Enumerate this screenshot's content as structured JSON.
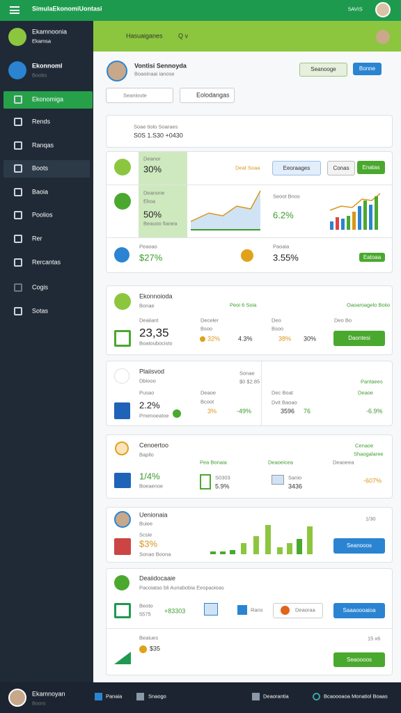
{
  "top_bar": {
    "title": "SimulaEkonomiUontasi",
    "status": "5AVIS"
  },
  "sidebar": {
    "profile": {
      "name": "Ekamnoonia",
      "role": "Ekamsa"
    },
    "account": {
      "name": "Ekonnoml",
      "role": "Boobs"
    },
    "menu": [
      "Ekonomiga",
      "Rends",
      "Ranqas",
      "Boots",
      "Baoia",
      "Poolios",
      "Rer",
      "Rercantas",
      "Cogis",
      "Sotas"
    ]
  },
  "header": {
    "title": "Hasuaiganes",
    "search": "Q v"
  },
  "profile_bar": {
    "name": "Vontisi Sennoyda",
    "subtitle": "Boaoinaai ianose",
    "buttons": [
      "Seanooge",
      "Bonne"
    ],
    "search": [
      "Seanioute",
      "Eolodangas"
    ]
  },
  "notice": {
    "title": "Soae tiolo Soaraes",
    "text": "S0S 1.S30 +0430"
  },
  "overview": {
    "row_1": {
      "label": "Deanor",
      "value": "30%",
      "tag": "Deat Soaa",
      "buttons": [
        "Eeoraages",
        "Conas",
        "Enatas"
      ]
    },
    "row_2": {
      "label": "Deanone",
      "sublabel": "Ekoa",
      "value": "50%",
      "note": "Beauoo fianea",
      "right_label": "Seoot Bnos",
      "right_value": "6.2%"
    },
    "row_3": {
      "label": "Peaoao",
      "value": "$27%",
      "right_label": "Paoaia",
      "right_value": "3.55%",
      "button": "Eatoaa"
    }
  },
  "cards": [
    {
      "title": "Ekonnoioda",
      "subtitle": "Bonae",
      "items": [
        "Peoi 6 Soia",
        "Oaoaroagelo Boiio",
        "Deaiiant",
        "23,35",
        "Boatoubocisto",
        "Deceler",
        "Bsoo",
        "32%",
        "4.3%",
        "Deo",
        "Bsoo",
        "38%",
        "30%",
        "Deo Bo",
        "Daontesi"
      ]
    },
    {
      "title": "Plaiisvod",
      "subtitle": "Dbiooo",
      "items": [
        "Sonae",
        "$0 $2.85",
        "Pantaees",
        "Pusao",
        "2.2%",
        "Pmenoeatoe",
        "Deaoe",
        "Bcoot",
        "3%",
        "-49%",
        "Dec Boat",
        "Dvit Baoao",
        "3596",
        "76",
        "Deaoe",
        "-6.9%"
      ]
    },
    {
      "title": "Cenoertoo",
      "subtitle": "Bapilo",
      "items": [
        "Cenaoe",
        "Shaogalaree",
        "Pea Bonaia",
        "Deaoeicea",
        "Deaoeea",
        "1/4%",
        "Boeaenoe",
        "S0303",
        "5.9%",
        "Sanio",
        "3436",
        "-607%"
      ]
    },
    {
      "title": "Uenionaia",
      "subtitle": "Buiee",
      "items": [
        "1/30",
        "Scsie",
        "$3%",
        "Sonao Boona",
        "Seanooos"
      ]
    },
    {
      "title": "Deaiidocaaie",
      "subtitle": "Pacoiatas bli Aunabobia Eeopaoioas",
      "items": [
        "Beoto",
        "5575",
        "+83303",
        "Rans",
        "Deaoraa",
        "Saaaoooaioa",
        "Beaiues",
        "$35",
        "15 x6",
        "Seaoooos"
      ]
    }
  ],
  "footer": {
    "user": {
      "name": "Ekamnoyan",
      "role": "Boors"
    },
    "links": [
      "Panaia",
      "Snaogo",
      "Deaorantia",
      "Bcaoooaoa Monatiol Boaas"
    ]
  }
}
